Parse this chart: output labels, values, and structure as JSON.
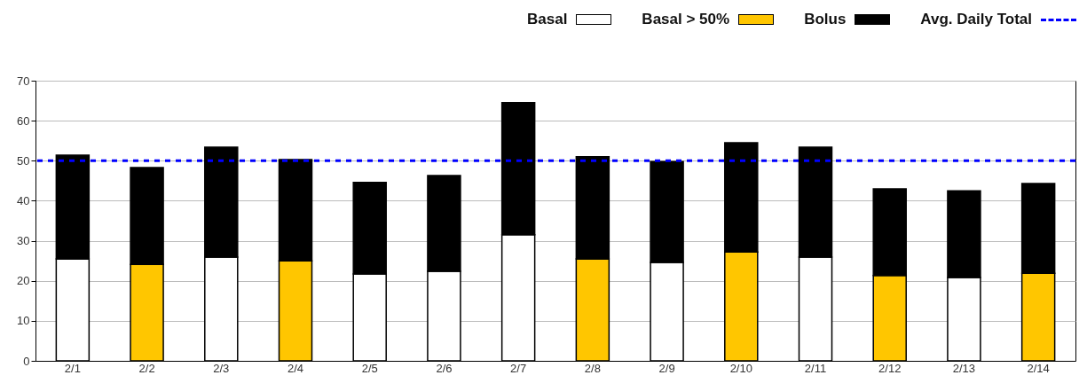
{
  "chart_data": {
    "type": "bar",
    "stacked": true,
    "categories": [
      "2/1",
      "2/2",
      "2/3",
      "2/4",
      "2/5",
      "2/6",
      "2/7",
      "2/8",
      "2/9",
      "2/10",
      "2/11",
      "2/12",
      "2/13",
      "2/14"
    ],
    "series": [
      {
        "name": "Basal",
        "color": "#ffffff",
        "values": [
          25.5,
          null,
          25.9,
          null,
          21.7,
          22.4,
          31.5,
          null,
          24.6,
          null,
          25.9,
          null,
          20.8,
          null
        ]
      },
      {
        "name": "Basal > 50%",
        "color": "#ffc600",
        "values": [
          null,
          24.1,
          null,
          25.0,
          null,
          null,
          null,
          25.5,
          null,
          27.2,
          null,
          21.3,
          null,
          21.9
        ]
      },
      {
        "name": "Bolus",
        "color": "#000000",
        "values": [
          25.9,
          24.2,
          27.5,
          25.3,
          22.9,
          23.9,
          33.0,
          25.5,
          25.2,
          27.3,
          27.5,
          21.7,
          21.7,
          22.4
        ]
      }
    ],
    "ylim": [
      0,
      70
    ],
    "yticks": [
      0,
      10,
      20,
      30,
      40,
      50,
      60,
      70
    ],
    "grid": "y",
    "legend": "top right",
    "ref_lines": [
      {
        "axis": "y",
        "value": 50,
        "label": "Avg. Daily Total",
        "color": "#0000ff",
        "line_style": "dashed"
      }
    ]
  }
}
